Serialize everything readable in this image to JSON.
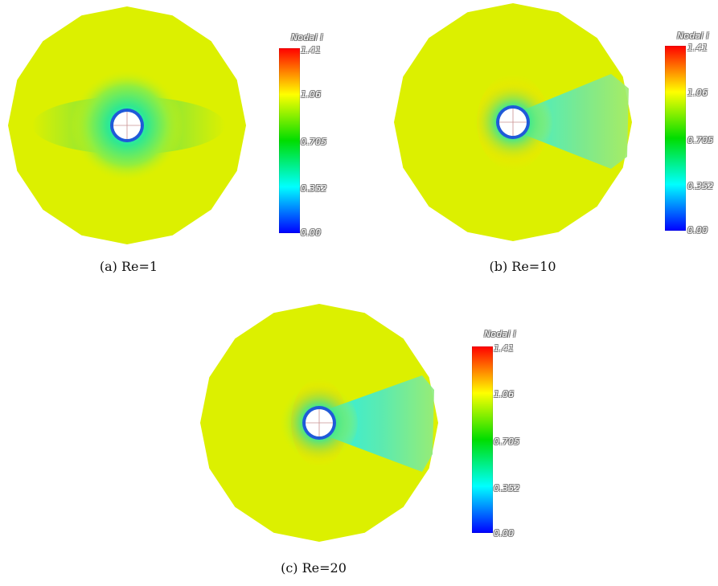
{
  "colorbar": {
    "title": "Nodal I",
    "ticks": [
      "1.41",
      "1.06",
      "0.705",
      "0.352",
      "0.00"
    ],
    "colors": [
      "#ff0000",
      "#ffff00",
      "#00dd00",
      "#00ffff",
      "#0000ff"
    ]
  },
  "field_colors": {
    "far_field": "#dcf000",
    "near_wake": "#60e878",
    "wake_core": "#40f0d8",
    "stagnation_high": "#ffb000",
    "cylinder": "#ffffff"
  },
  "panels": [
    {
      "caption": "(a)  Re=1",
      "reynolds": 1
    },
    {
      "caption": "(b)  Re=10",
      "reynolds": 10
    },
    {
      "caption": "(c)  Re=20",
      "reynolds": 20
    }
  ]
}
